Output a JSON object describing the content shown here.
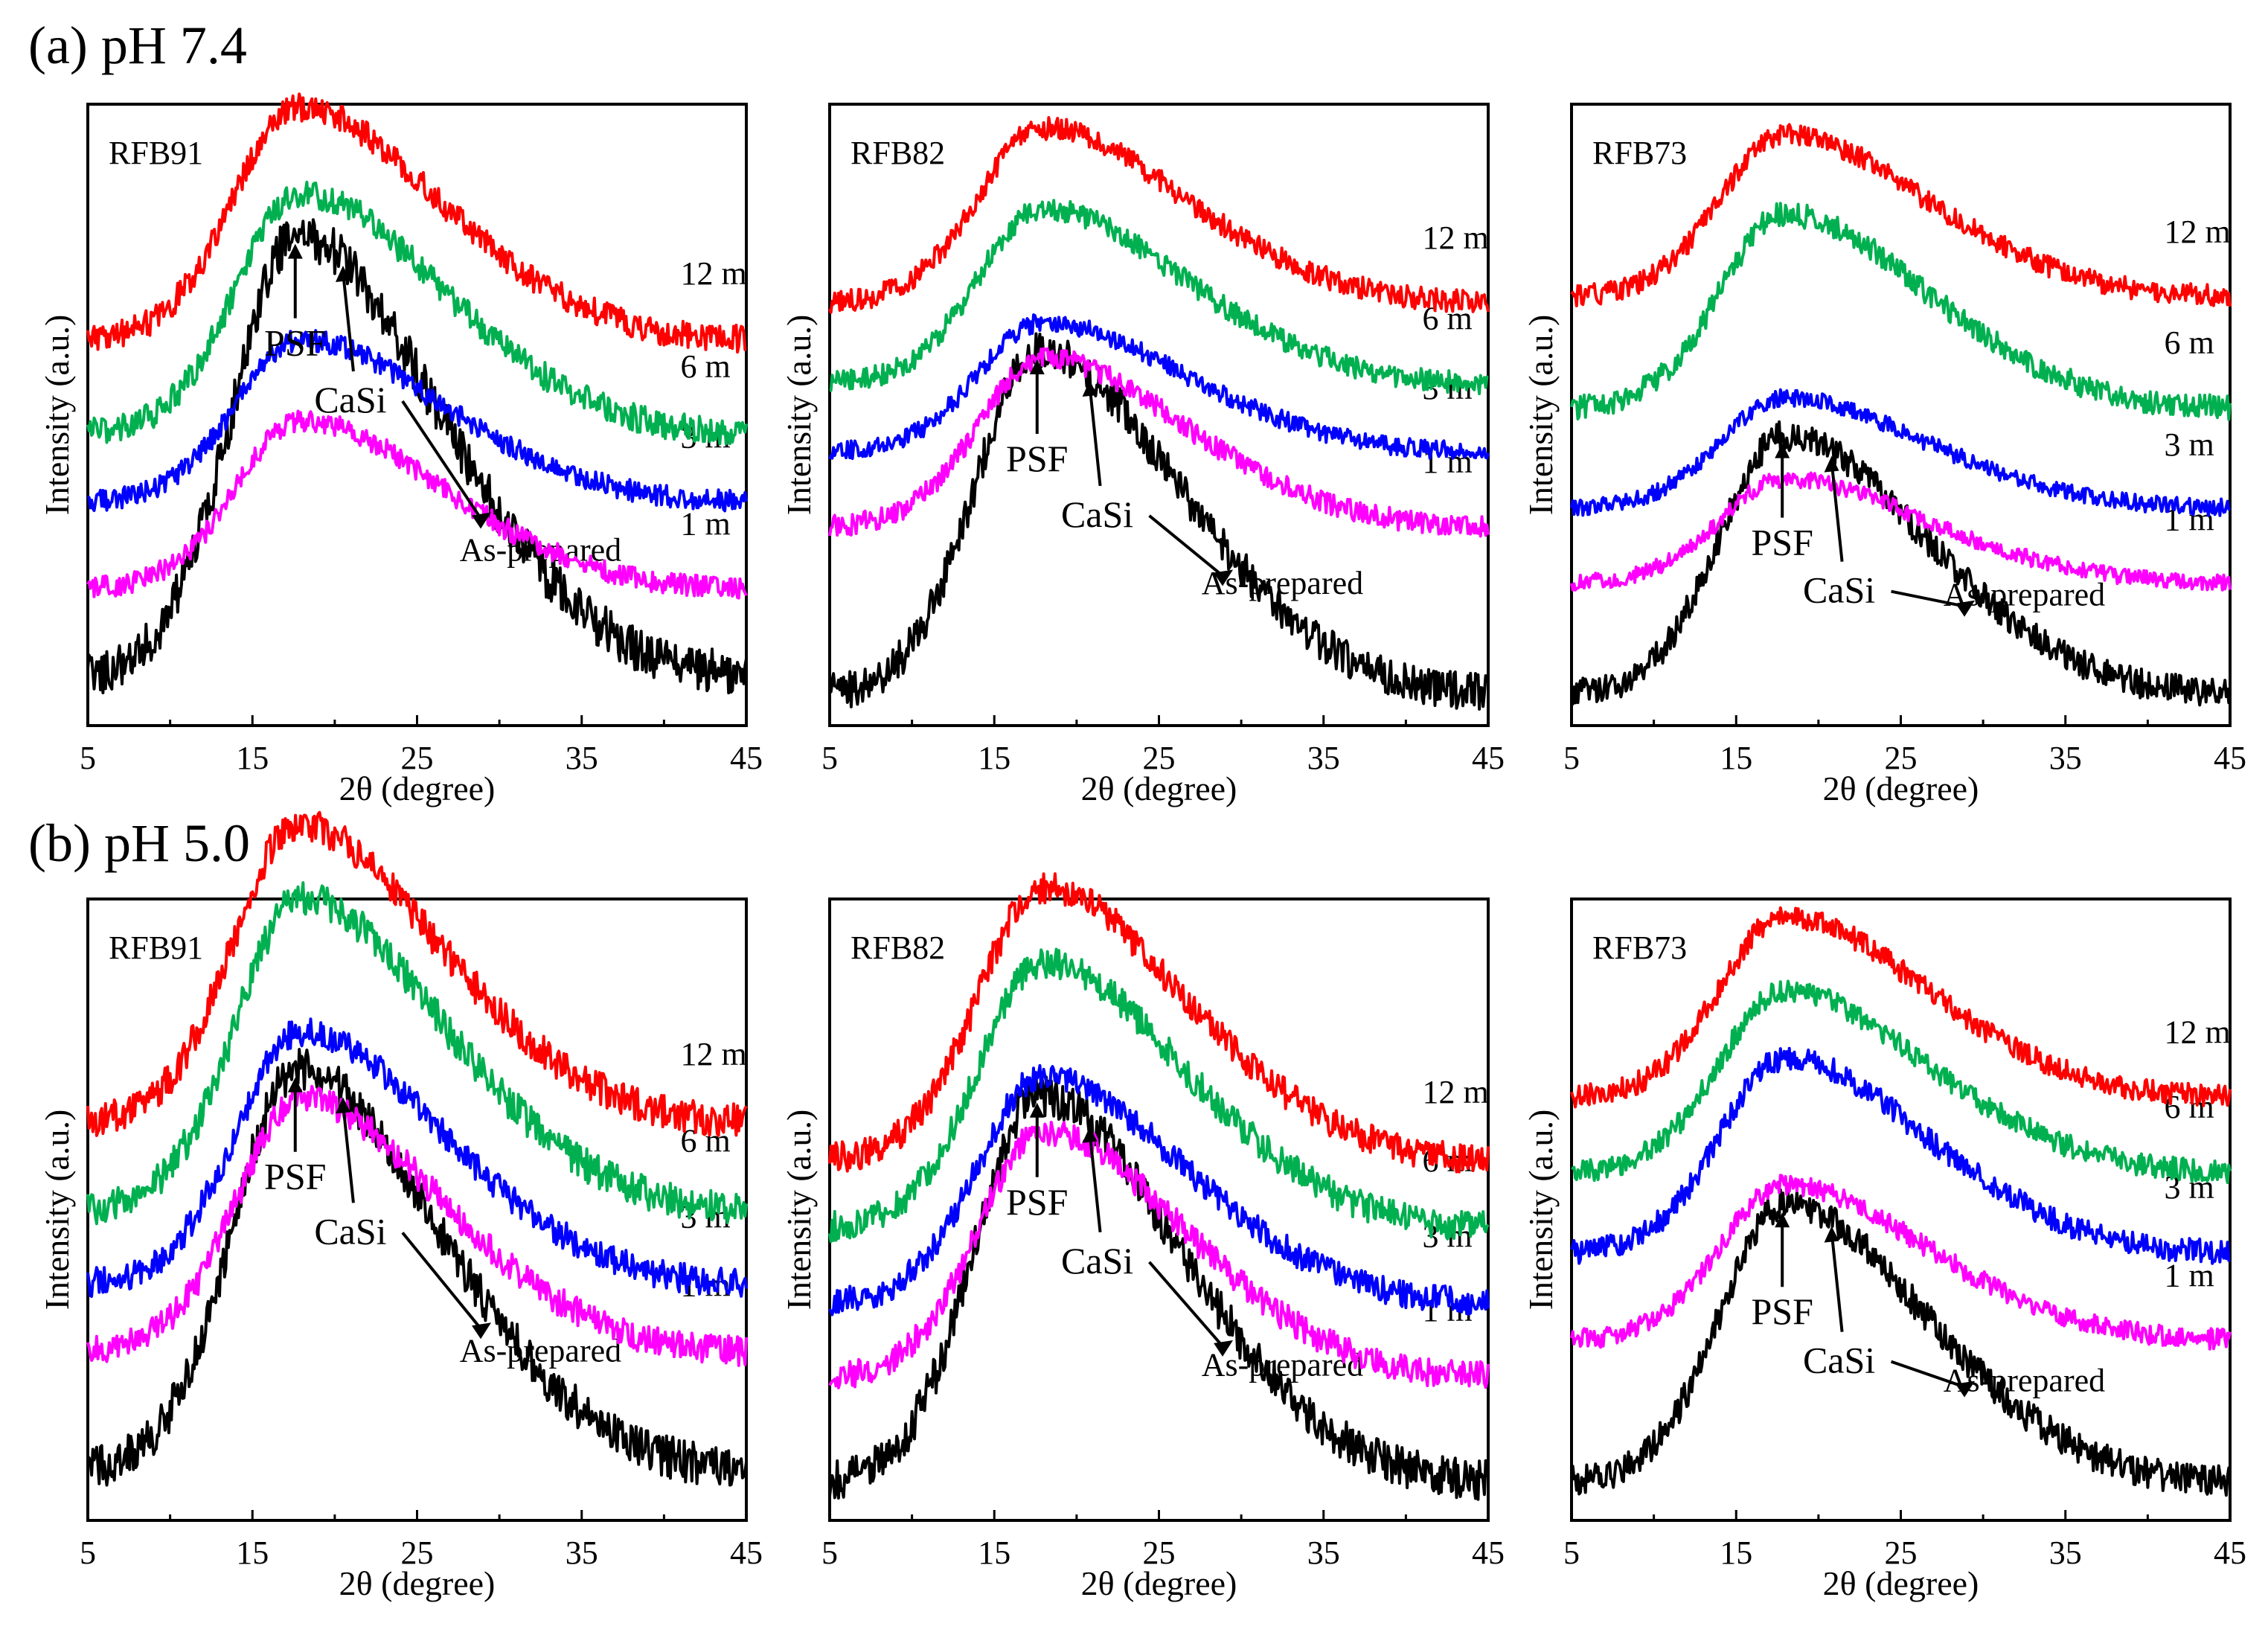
{
  "figure": {
    "sections": [
      {
        "id": "a",
        "title": "(a) pH 7.4"
      },
      {
        "id": "b",
        "title": "(b) pH 5.0"
      }
    ]
  },
  "chart_data": [
    {
      "type": "line",
      "section": "(a) pH 7.4",
      "panel_label": "RFB91",
      "xlabel": "2θ (degree)",
      "ylabel": "Intensity (a.u.)",
      "xlim": [
        5,
        45
      ],
      "xticks": [
        5,
        15,
        25,
        35,
        45
      ],
      "yticks": "none",
      "series": [
        {
          "name": "As-prepared",
          "color": "#000000",
          "baseline": 0.08,
          "peak_x": 17.6,
          "peak_height": 0.68,
          "tail": 0.0
        },
        {
          "name": "1 m",
          "color": "#ff00ff",
          "baseline": 0.22,
          "peak_x": 17.8,
          "peak_height": 0.26,
          "tail": 0.0
        },
        {
          "name": "3 m",
          "color": "#0000ff",
          "baseline": 0.36,
          "peak_x": 17.8,
          "peak_height": 0.25,
          "tail": 0.0
        },
        {
          "name": "6 m",
          "color": "#00b050",
          "baseline": 0.47,
          "peak_x": 17.8,
          "peak_height": 0.37,
          "tail": 0.0
        },
        {
          "name": "12 m",
          "color": "#ff0000",
          "baseline": 0.62,
          "peak_x": 17.6,
          "peak_height": 0.36,
          "tail": 0.0
        }
      ],
      "annotations": [
        {
          "text": "PSF",
          "x": 17.6
        },
        {
          "text": "CaSi",
          "x": 20.5
        },
        {
          "text": "CaSi",
          "x": 29.5
        }
      ]
    },
    {
      "type": "line",
      "section": "(a) pH 7.4",
      "panel_label": "RFB82",
      "xlabel": "2θ (degree)",
      "ylabel": "Intensity (a.u.)",
      "xlim": [
        5,
        45
      ],
      "xticks": [
        5,
        15,
        25,
        35,
        45
      ],
      "yticks": "none",
      "series": [
        {
          "name": "As-prepared",
          "color": "#000000",
          "baseline": 0.05,
          "peak_x": 17.6,
          "peak_height": 0.53,
          "tail": 0.0
        },
        {
          "name": "1 m",
          "color": "#ff00ff",
          "baseline": 0.32,
          "peak_x": 17.8,
          "peak_height": 0.26,
          "tail": 0.0
        },
        {
          "name": "3 m",
          "color": "#0000ff",
          "baseline": 0.44,
          "peak_x": 17.8,
          "peak_height": 0.2,
          "tail": 0.0
        },
        {
          "name": "6 m",
          "color": "#00b050",
          "baseline": 0.55,
          "peak_x": 17.8,
          "peak_height": 0.27,
          "tail": 0.0
        },
        {
          "name": "12 m",
          "color": "#ff0000",
          "baseline": 0.68,
          "peak_x": 17.8,
          "peak_height": 0.27,
          "tail": 0.0
        }
      ],
      "annotations": [
        {
          "text": "PSF",
          "x": 17.6
        },
        {
          "text": "CaSi",
          "x": 20.8
        },
        {
          "text": "CaSi",
          "x": 29.5
        }
      ]
    },
    {
      "type": "line",
      "section": "(a) pH 7.4",
      "panel_label": "RFB73",
      "xlabel": "2θ (degree)",
      "ylabel": "Intensity (a.u.)",
      "xlim": [
        5,
        45
      ],
      "xticks": [
        5,
        15,
        25,
        35,
        45
      ],
      "yticks": "none",
      "series": [
        {
          "name": "As-prepared",
          "color": "#000000",
          "baseline": 0.05,
          "peak_x": 17.8,
          "peak_height": 0.4,
          "tail": 0.0
        },
        {
          "name": "1 m",
          "color": "#ff00ff",
          "baseline": 0.23,
          "peak_x": 17.8,
          "peak_height": 0.16,
          "tail": 0.0
        },
        {
          "name": "3 m",
          "color": "#0000ff",
          "baseline": 0.35,
          "peak_x": 17.8,
          "peak_height": 0.17,
          "tail": 0.0
        },
        {
          "name": "6 m",
          "color": "#00b050",
          "baseline": 0.51,
          "peak_x": 17.8,
          "peak_height": 0.3,
          "tail": 0.0
        },
        {
          "name": "12 m",
          "color": "#ff0000",
          "baseline": 0.69,
          "peak_x": 17.8,
          "peak_height": 0.25,
          "tail": 0.0
        }
      ],
      "annotations": [
        {
          "text": "PSF",
          "x": 17.8
        },
        {
          "text": "CaSi",
          "x": 20.8
        },
        {
          "text": "CaSi",
          "x": 29.5
        }
      ]
    },
    {
      "type": "line",
      "section": "(b) pH 5.0",
      "panel_label": "RFB91",
      "xlabel": "2θ (degree)",
      "ylabel": "Intensity (a.u.)",
      "xlim": [
        5,
        45
      ],
      "xticks": [
        5,
        15,
        25,
        35,
        45
      ],
      "yticks": "none",
      "series": [
        {
          "name": "As-prepared",
          "color": "#000000",
          "baseline": 0.08,
          "peak_x": 17.6,
          "peak_height": 0.62,
          "tail": 0.0
        },
        {
          "name": "1 m",
          "color": "#ff00ff",
          "baseline": 0.27,
          "peak_x": 17.8,
          "peak_height": 0.39,
          "tail": 0.0
        },
        {
          "name": "3 m",
          "color": "#0000ff",
          "baseline": 0.38,
          "peak_x": 17.8,
          "peak_height": 0.39,
          "tail": 0.0
        },
        {
          "name": "6 m",
          "color": "#00b050",
          "baseline": 0.5,
          "peak_x": 17.8,
          "peak_height": 0.48,
          "tail": 0.0
        },
        {
          "name": "12 m",
          "color": "#ff0000",
          "baseline": 0.64,
          "peak_x": 17.6,
          "peak_height": 0.46,
          "tail": 0.0
        }
      ],
      "annotations": [
        {
          "text": "PSF",
          "x": 17.6
        },
        {
          "text": "CaSi",
          "x": 20.5
        },
        {
          "text": "CaSi",
          "x": 29.5
        }
      ]
    },
    {
      "type": "line",
      "section": "(b) pH 5.0",
      "panel_label": "RFB82",
      "xlabel": "2θ (degree)",
      "ylabel": "Intensity (a.u.)",
      "xlim": [
        5,
        45
      ],
      "xticks": [
        5,
        15,
        25,
        35,
        45
      ],
      "yticks": "none",
      "series": [
        {
          "name": "As-prepared",
          "color": "#000000",
          "baseline": 0.06,
          "peak_x": 17.6,
          "peak_height": 0.6,
          "tail": 0.0
        },
        {
          "name": "1 m",
          "color": "#ff00ff",
          "baseline": 0.23,
          "peak_x": 17.8,
          "peak_height": 0.38,
          "tail": 0.0
        },
        {
          "name": "3 m",
          "color": "#0000ff",
          "baseline": 0.35,
          "peak_x": 17.8,
          "peak_height": 0.35,
          "tail": 0.0
        },
        {
          "name": "6 m",
          "color": "#00b050",
          "baseline": 0.47,
          "peak_x": 17.8,
          "peak_height": 0.41,
          "tail": 0.0
        },
        {
          "name": "12 m",
          "color": "#ff0000",
          "baseline": 0.58,
          "peak_x": 17.8,
          "peak_height": 0.42,
          "tail": 0.0
        }
      ],
      "annotations": [
        {
          "text": "PSF",
          "x": 17.6
        },
        {
          "text": "CaSi",
          "x": 20.8
        },
        {
          "text": "CaSi",
          "x": 29.5
        }
      ]
    },
    {
      "type": "line",
      "section": "(b) pH 5.0",
      "panel_label": "RFB73",
      "xlabel": "2θ (degree)",
      "ylabel": "Intensity (a.u.)",
      "xlim": [
        5,
        45
      ],
      "xticks": [
        5,
        15,
        25,
        35,
        45
      ],
      "yticks": "none",
      "series": [
        {
          "name": "As-prepared",
          "color": "#000000",
          "baseline": 0.06,
          "peak_x": 17.8,
          "peak_height": 0.43,
          "tail": 0.0
        },
        {
          "name": "1 m",
          "color": "#ff00ff",
          "baseline": 0.29,
          "peak_x": 17.8,
          "peak_height": 0.24,
          "tail": 0.0
        },
        {
          "name": "3 m",
          "color": "#0000ff",
          "baseline": 0.43,
          "peak_x": 17.8,
          "peak_height": 0.3,
          "tail": 0.0
        },
        {
          "name": "6 m",
          "color": "#00b050",
          "baseline": 0.56,
          "peak_x": 17.8,
          "peak_height": 0.28,
          "tail": 0.0
        },
        {
          "name": "12 m",
          "color": "#ff0000",
          "baseline": 0.68,
          "peak_x": 17.8,
          "peak_height": 0.28,
          "tail": 0.0
        }
      ],
      "annotations": [
        {
          "text": "PSF",
          "x": 17.8
        },
        {
          "text": "CaSi",
          "x": 20.8
        },
        {
          "text": "CaSi",
          "x": 29.5
        }
      ]
    }
  ]
}
